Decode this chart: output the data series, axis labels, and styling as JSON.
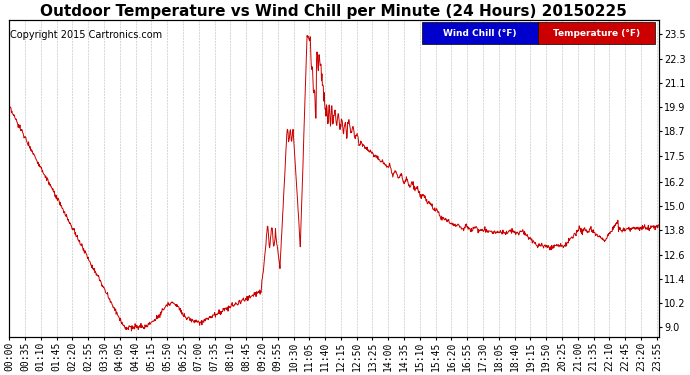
{
  "title": "Outdoor Temperature vs Wind Chill per Minute (24 Hours) 20150225",
  "copyright": "Copyright 2015 Cartronics.com",
  "yticks": [
    9.0,
    10.2,
    11.4,
    12.6,
    13.8,
    15.0,
    16.2,
    17.5,
    18.7,
    19.9,
    21.1,
    22.3,
    23.5
  ],
  "ylim": [
    8.5,
    24.2
  ],
  "legend_labels": [
    "Wind Chill (°F)",
    "Temperature (°F)"
  ],
  "legend_bg_colors": [
    "#0000cc",
    "#cc0000"
  ],
  "line_color": "#cc0000",
  "background_color": "#ffffff",
  "grid_color": "#bbbbbb",
  "title_fontsize": 11,
  "copyright_fontsize": 7,
  "tick_fontsize": 7,
  "figsize": [
    6.9,
    3.75
  ],
  "dpi": 100
}
